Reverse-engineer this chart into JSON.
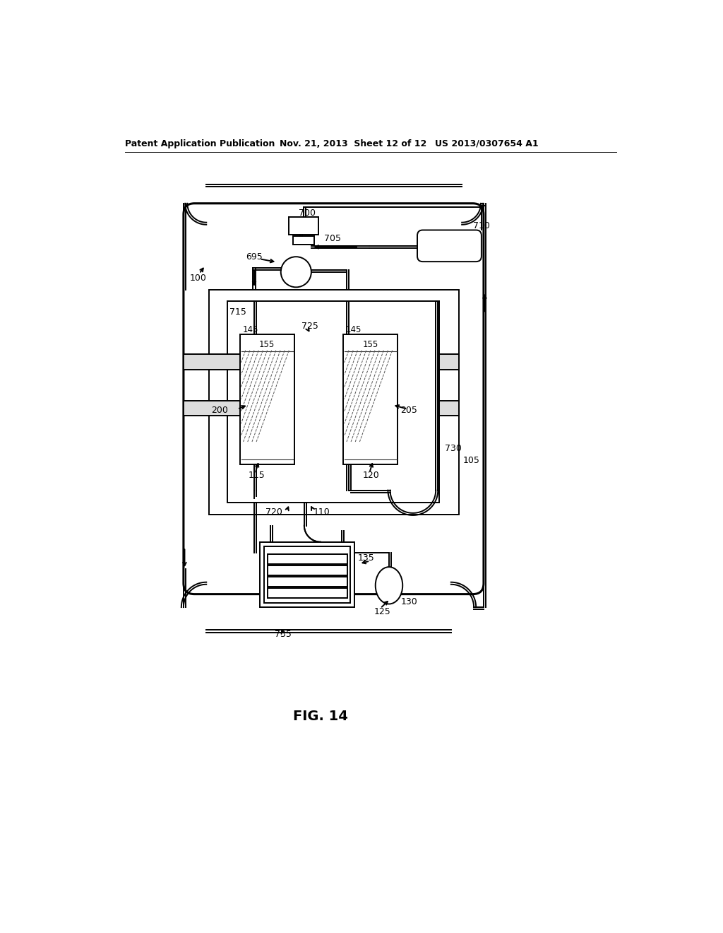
{
  "title": "FIG. 14",
  "header_left": "Patent Application Publication",
  "header_mid": "Nov. 21, 2013  Sheet 12 of 12",
  "header_right": "US 2013/0307654 A1",
  "bg_color": "#ffffff",
  "line_color": "#000000",
  "label_fontsize": 9,
  "header_fontsize": 9
}
